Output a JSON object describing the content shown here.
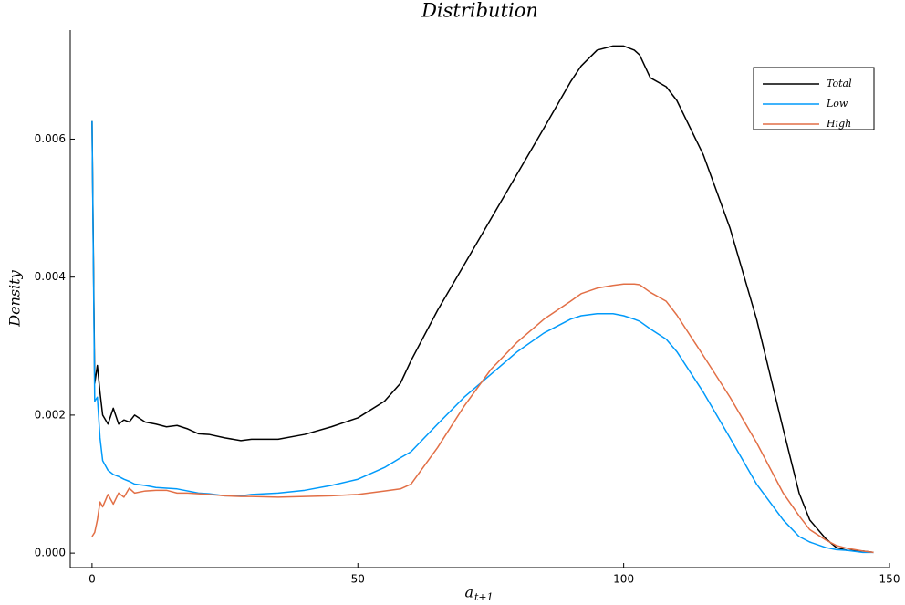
{
  "chart_data": {
    "type": "line",
    "title": "Distribution",
    "xlabel": "a",
    "xlabel_subscript": "t+1",
    "ylabel": "Density",
    "x": [
      0,
      0.5,
      1,
      1.5,
      2,
      3,
      4,
      5,
      6,
      7,
      8,
      10,
      12,
      14,
      16,
      18,
      20,
      22,
      25,
      28,
      30,
      35,
      40,
      45,
      50,
      55,
      58,
      60,
      65,
      70,
      75,
      80,
      85,
      90,
      92,
      95,
      98,
      100,
      102,
      103,
      105,
      108,
      110,
      115,
      120,
      125,
      130,
      133,
      135,
      138,
      140,
      142,
      145,
      147
    ],
    "series": [
      {
        "name": "Total",
        "color": "#000000",
        "values": [
          0.00626,
          0.00246,
          0.00272,
          0.00233,
          0.002,
          0.00187,
          0.0021,
          0.00187,
          0.00193,
          0.0019,
          0.002,
          0.0019,
          0.00187,
          0.00183,
          0.00185,
          0.0018,
          0.00173,
          0.00172,
          0.00167,
          0.00163,
          0.00165,
          0.00165,
          0.00172,
          0.00183,
          0.00196,
          0.0022,
          0.00246,
          0.00279,
          0.00352,
          0.00418,
          0.00484,
          0.0055,
          0.00616,
          0.00683,
          0.00706,
          0.00729,
          0.00735,
          0.00735,
          0.00729,
          0.00722,
          0.00689,
          0.00676,
          0.00656,
          0.00577,
          0.00471,
          0.00339,
          0.0018,
          0.00087,
          0.00048,
          0.00021,
          8e-05,
          4e-05,
          3e-05,
          1e-05
        ]
      },
      {
        "name": "Low",
        "color": "#009afa",
        "values": [
          0.00626,
          0.0022,
          0.00226,
          0.00167,
          0.00134,
          0.0012,
          0.00114,
          0.00111,
          0.00107,
          0.00104,
          0.001,
          0.00098,
          0.00095,
          0.00094,
          0.00093,
          0.0009,
          0.00087,
          0.00086,
          0.00083,
          0.00083,
          0.00085,
          0.00087,
          0.00091,
          0.00098,
          0.00107,
          0.00124,
          0.00138,
          0.00147,
          0.00187,
          0.00226,
          0.00259,
          0.00292,
          0.00319,
          0.00339,
          0.00344,
          0.00347,
          0.00347,
          0.00344,
          0.00339,
          0.00336,
          0.00325,
          0.0031,
          0.00292,
          0.00233,
          0.00167,
          0.001,
          0.00048,
          0.00024,
          0.00016,
          8e-05,
          5e-05,
          4e-05,
          1e-05,
          1e-05
        ]
      },
      {
        "name": "High",
        "color": "#e26f46",
        "values": [
          0.00024,
          0.0003,
          0.00048,
          0.00074,
          0.00067,
          0.00085,
          0.00071,
          0.00087,
          0.00081,
          0.00094,
          0.00087,
          0.0009,
          0.00091,
          0.00091,
          0.00087,
          0.00087,
          0.00086,
          0.00085,
          0.00083,
          0.00082,
          0.00082,
          0.00081,
          0.00082,
          0.00083,
          0.00085,
          0.0009,
          0.00093,
          0.001,
          0.00153,
          0.00213,
          0.00266,
          0.00306,
          0.00339,
          0.00365,
          0.00376,
          0.00384,
          0.00388,
          0.0039,
          0.0039,
          0.00389,
          0.00378,
          0.00365,
          0.00345,
          0.00286,
          0.00226,
          0.0016,
          0.00087,
          0.00054,
          0.00034,
          0.00019,
          0.00011,
          7e-05,
          3e-05,
          1e-05
        ]
      }
    ],
    "xlim": [
      -4.1,
      150.0
    ],
    "ylim": [
      -0.00021,
      0.00758
    ],
    "xticks": [
      0,
      50,
      100,
      150
    ],
    "yticks": [
      {
        "value": 0,
        "label": "0.000"
      },
      {
        "value": 0.002,
        "label": "0.002"
      },
      {
        "value": 0.004,
        "label": "0.004"
      },
      {
        "value": 0.006,
        "label": "0.006"
      }
    ],
    "grid": false,
    "legend": "upper right"
  }
}
